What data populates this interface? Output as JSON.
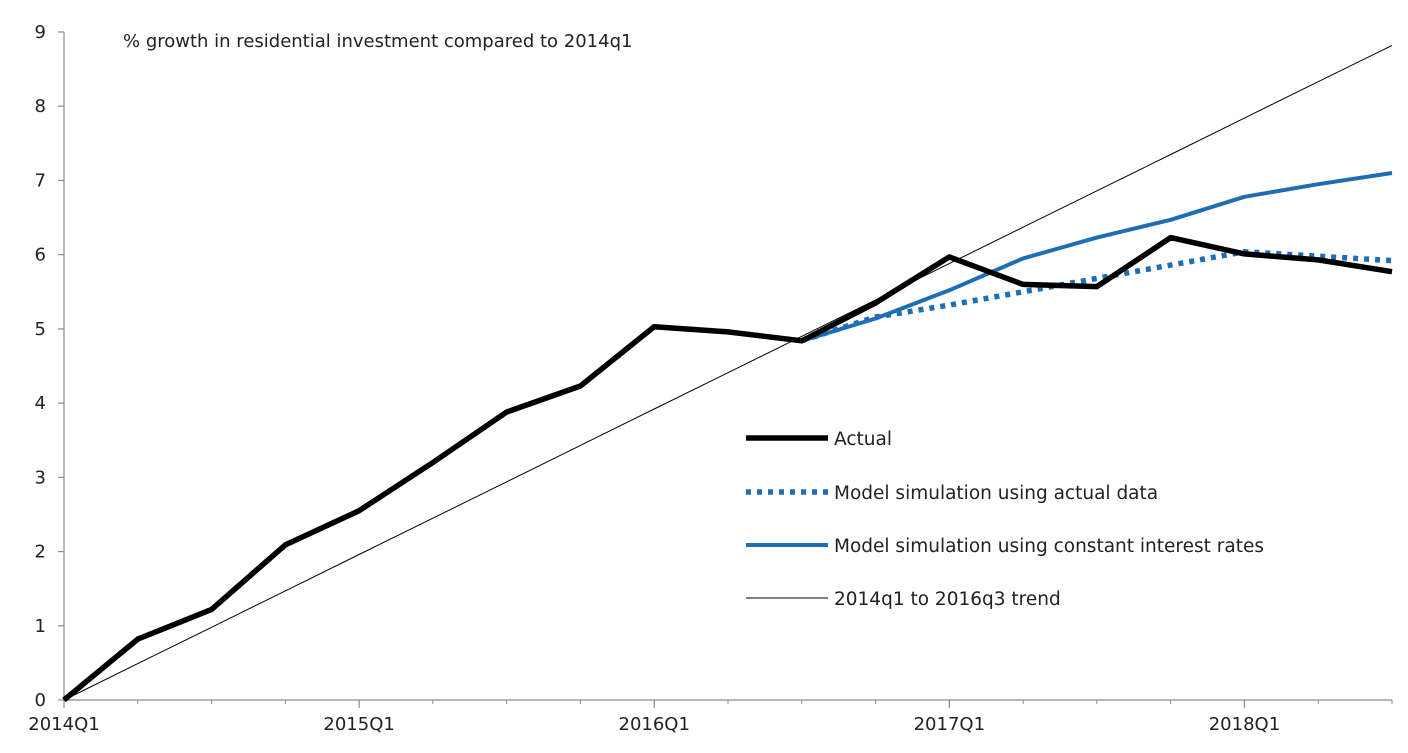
{
  "chart_data": {
    "type": "line",
    "title": "% growth in residential investment compared to 2014q1",
    "xlabel": "",
    "ylabel": "",
    "ylim": [
      0,
      9
    ],
    "y_ticks": [
      "0",
      "1",
      "2",
      "3",
      "4",
      "5",
      "6",
      "7",
      "8",
      "9"
    ],
    "x_tick_labels": [
      "2014Q1",
      "2015Q1",
      "2016Q1",
      "2017Q1",
      "2018Q1"
    ],
    "x": [
      "2014Q1",
      "2014Q2",
      "2014Q3",
      "2014Q4",
      "2015Q1",
      "2015Q2",
      "2015Q3",
      "2015Q4",
      "2016Q1",
      "2016Q2",
      "2016Q3",
      "2016Q4",
      "2017Q1",
      "2017Q2",
      "2017Q3",
      "2017Q4",
      "2018Q1",
      "2018Q2",
      "2018Q3"
    ],
    "grid": false,
    "legend_position": "center-right",
    "series": [
      {
        "name": "Actual",
        "style": "thick-solid",
        "color": "#000000",
        "values": [
          0,
          0.82,
          1.22,
          2.09,
          2.55,
          3.2,
          3.88,
          4.23,
          5.03,
          4.96,
          4.84,
          5.35,
          5.97,
          5.6,
          5.57,
          6.23,
          6.01,
          5.93,
          5.77
        ]
      },
      {
        "name": "Model simulation using actual data",
        "style": "dotted",
        "color": "#1f6eb5",
        "values": [
          null,
          null,
          null,
          null,
          null,
          null,
          null,
          null,
          null,
          null,
          4.84,
          5.16,
          5.32,
          5.5,
          5.68,
          5.86,
          6.04,
          5.98,
          5.92
        ]
      },
      {
        "name": "Model simulation using constant interest rates",
        "style": "solid",
        "color": "#1f6eb5",
        "values": [
          null,
          null,
          null,
          null,
          null,
          null,
          null,
          null,
          null,
          null,
          4.84,
          5.14,
          5.52,
          5.95,
          6.23,
          6.47,
          6.78,
          6.95,
          7.1
        ]
      },
      {
        "name": "2014q1 to 2016q3 trend",
        "style": "thin-solid",
        "color": "#000000",
        "values": [
          0,
          0.49,
          0.98,
          1.47,
          1.96,
          2.45,
          2.94,
          3.43,
          3.92,
          4.41,
          4.9,
          5.39,
          5.88,
          6.37,
          6.86,
          7.35,
          7.84,
          8.33,
          8.82
        ]
      }
    ]
  }
}
